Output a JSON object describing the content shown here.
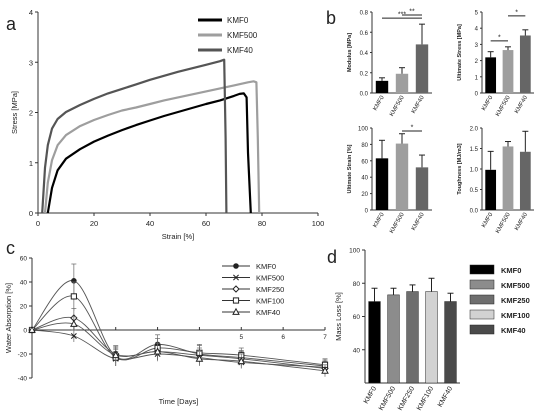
{
  "chart_data": [
    {
      "panel": "a",
      "type": "line",
      "xlabel": "Strain [%]",
      "ylabel": "Stress [MPa]",
      "xlim": [
        0,
        100
      ],
      "ylim": [
        0,
        4
      ],
      "xticks": [
        "0",
        "20",
        "40",
        "60",
        "80",
        "100"
      ],
      "yticks": [
        "0",
        "1",
        "2",
        "3",
        "4"
      ],
      "legend_position": "top-right",
      "series": [
        {
          "name": "KMF0",
          "color": "#000000",
          "x": [
            3.5,
            5,
            7,
            10,
            15,
            20,
            25,
            30,
            35,
            40,
            45,
            50,
            55,
            60,
            65,
            70,
            72,
            73.5,
            74.5,
            75,
            76
          ],
          "y": [
            0,
            0.5,
            0.85,
            1.08,
            1.27,
            1.42,
            1.54,
            1.65,
            1.75,
            1.84,
            1.93,
            2.01,
            2.09,
            2.17,
            2.24,
            2.33,
            2.37,
            2.38,
            2.3,
            1.2,
            0
          ]
        },
        {
          "name": "KMF500",
          "color": "#9e9e9e",
          "x": [
            2.5,
            3.5,
            5,
            7,
            10,
            15,
            20,
            25,
            30,
            35,
            40,
            45,
            50,
            55,
            60,
            65,
            70,
            75,
            77,
            78,
            78.5,
            79
          ],
          "y": [
            0,
            0.6,
            1.05,
            1.35,
            1.55,
            1.73,
            1.85,
            1.95,
            2.04,
            2.1,
            2.17,
            2.24,
            2.3,
            2.36,
            2.42,
            2.48,
            2.54,
            2.6,
            2.62,
            2.6,
            1.5,
            0
          ]
        },
        {
          "name": "KMF40",
          "color": "#555555",
          "x": [
            1.5,
            2.5,
            3.5,
            5,
            7,
            10,
            15,
            20,
            25,
            30,
            35,
            40,
            45,
            50,
            55,
            60,
            65,
            66.5,
            67,
            67.3
          ],
          "y": [
            0,
            0.9,
            1.35,
            1.68,
            1.87,
            2.01,
            2.15,
            2.27,
            2.38,
            2.47,
            2.56,
            2.65,
            2.73,
            2.81,
            2.88,
            2.95,
            3.02,
            3.05,
            1.5,
            0
          ]
        }
      ]
    },
    {
      "panel": "b1",
      "type": "bar",
      "ylabel": "Modulus [MPa]",
      "categories": [
        "KMF0",
        "KMF500",
        "KMF40"
      ],
      "values": [
        0.12,
        0.19,
        0.48
      ],
      "errors": [
        0.03,
        0.06,
        0.2
      ],
      "colors": [
        "#000000",
        "#9e9e9e",
        "#666666"
      ],
      "ylim": [
        0,
        0.8
      ],
      "yticks": [
        "0.0",
        "0.2",
        "0.4",
        "0.6",
        "0.8"
      ],
      "significance": [
        {
          "from": 0,
          "to": 2,
          "label": "***"
        },
        {
          "from": 1,
          "to": 2,
          "label": "**"
        }
      ]
    },
    {
      "panel": "b2",
      "type": "bar",
      "ylabel": "Ultimate Stress [MPa]",
      "categories": [
        "KMF0",
        "KMF500",
        "KMF40"
      ],
      "values": [
        2.2,
        2.65,
        3.55
      ],
      "errors": [
        0.35,
        0.2,
        0.35
      ],
      "colors": [
        "#000000",
        "#9e9e9e",
        "#666666"
      ],
      "ylim": [
        0,
        5
      ],
      "yticks": [
        "0",
        "1",
        "2",
        "3",
        "4",
        "5"
      ],
      "significance": [
        {
          "from": 0,
          "to": 1,
          "label": "*"
        },
        {
          "from": 1,
          "to": 2,
          "label": "*"
        }
      ]
    },
    {
      "panel": "b3",
      "type": "bar",
      "ylabel": "Ultimate Strain [%]",
      "categories": [
        "KMF0",
        "KMF500",
        "KMF40"
      ],
      "values": [
        63,
        81,
        52
      ],
      "errors": [
        22,
        12,
        15
      ],
      "colors": [
        "#000000",
        "#9e9e9e",
        "#666666"
      ],
      "ylim": [
        0,
        100
      ],
      "yticks": [
        "0",
        "20",
        "40",
        "60",
        "80",
        "100"
      ],
      "significance": [
        {
          "from": 1,
          "to": 2,
          "label": "*"
        }
      ]
    },
    {
      "panel": "b4",
      "type": "bar",
      "ylabel": "Toughness [MJ/m3]",
      "categories": [
        "KMF0",
        "KMF500",
        "KMF40"
      ],
      "values": [
        0.98,
        1.55,
        1.42
      ],
      "errors": [
        0.45,
        0.12,
        0.5
      ],
      "colors": [
        "#000000",
        "#9e9e9e",
        "#666666"
      ],
      "ylim": [
        0,
        2
      ],
      "yticks": [
        "0.0",
        "0.5",
        "1.0",
        "1.5",
        "2.0"
      ],
      "significance": []
    },
    {
      "panel": "c",
      "type": "line",
      "xlabel": "Time [Days]",
      "ylabel": "Water Absorption [%]",
      "xlim": [
        0,
        7
      ],
      "ylim": [
        -40,
        60
      ],
      "xticks": [
        "5",
        "6",
        "7"
      ],
      "yticks": [
        "-40",
        "-20",
        "0",
        "20",
        "40",
        "60"
      ],
      "x": [
        0,
        1,
        2,
        3,
        4,
        5,
        7
      ],
      "series": [
        {
          "name": "KMF0",
          "marker": "filled-circle",
          "y": [
            0,
            41,
            -22,
            -12,
            -20,
            -23,
            -30
          ],
          "err": [
            2,
            14,
            8,
            8,
            7,
            6,
            5
          ]
        },
        {
          "name": "KMF500",
          "marker": "x",
          "y": [
            0,
            -5,
            -24,
            -20,
            -23,
            -27,
            -31
          ],
          "err": [
            2,
            5,
            6,
            6,
            6,
            5,
            5
          ]
        },
        {
          "name": "KMF250",
          "marker": "diamond",
          "y": [
            0,
            10,
            -20,
            -18,
            -21,
            -24,
            -32
          ],
          "err": [
            2,
            8,
            7,
            7,
            6,
            6,
            5
          ]
        },
        {
          "name": "KMF100",
          "marker": "open-square",
          "y": [
            0,
            28,
            -23,
            -15,
            -19,
            -21,
            -29
          ],
          "err": [
            2,
            12,
            7,
            8,
            7,
            6,
            5
          ]
        },
        {
          "name": "KMF40",
          "marker": "triangle",
          "y": [
            0,
            5,
            -21,
            -18,
            -24,
            -26,
            -34
          ],
          "err": [
            2,
            6,
            6,
            7,
            6,
            6,
            5
          ]
        }
      ]
    },
    {
      "panel": "d",
      "type": "bar",
      "ylabel": "Mass Loss [%]",
      "categories": [
        "KMF0",
        "KMF500",
        "KMF250",
        "KMF100",
        "KMF40"
      ],
      "values": [
        69,
        73,
        75,
        75,
        69
      ],
      "errors": [
        8,
        4,
        4,
        8,
        5
      ],
      "colors": [
        "#000000",
        "#8c8c8c",
        "#6e6e6e",
        "#d2d2d2",
        "#4a4a4a"
      ],
      "ylim": [
        20,
        100
      ],
      "yticks": [
        "40",
        "60",
        "80",
        "100"
      ],
      "legend": [
        "KMF0",
        "KMF500",
        "KMF250",
        "KMF100",
        "KMF40"
      ]
    }
  ],
  "panel_labels": {
    "a": "a",
    "b": "b",
    "c": "c",
    "d": "d"
  }
}
